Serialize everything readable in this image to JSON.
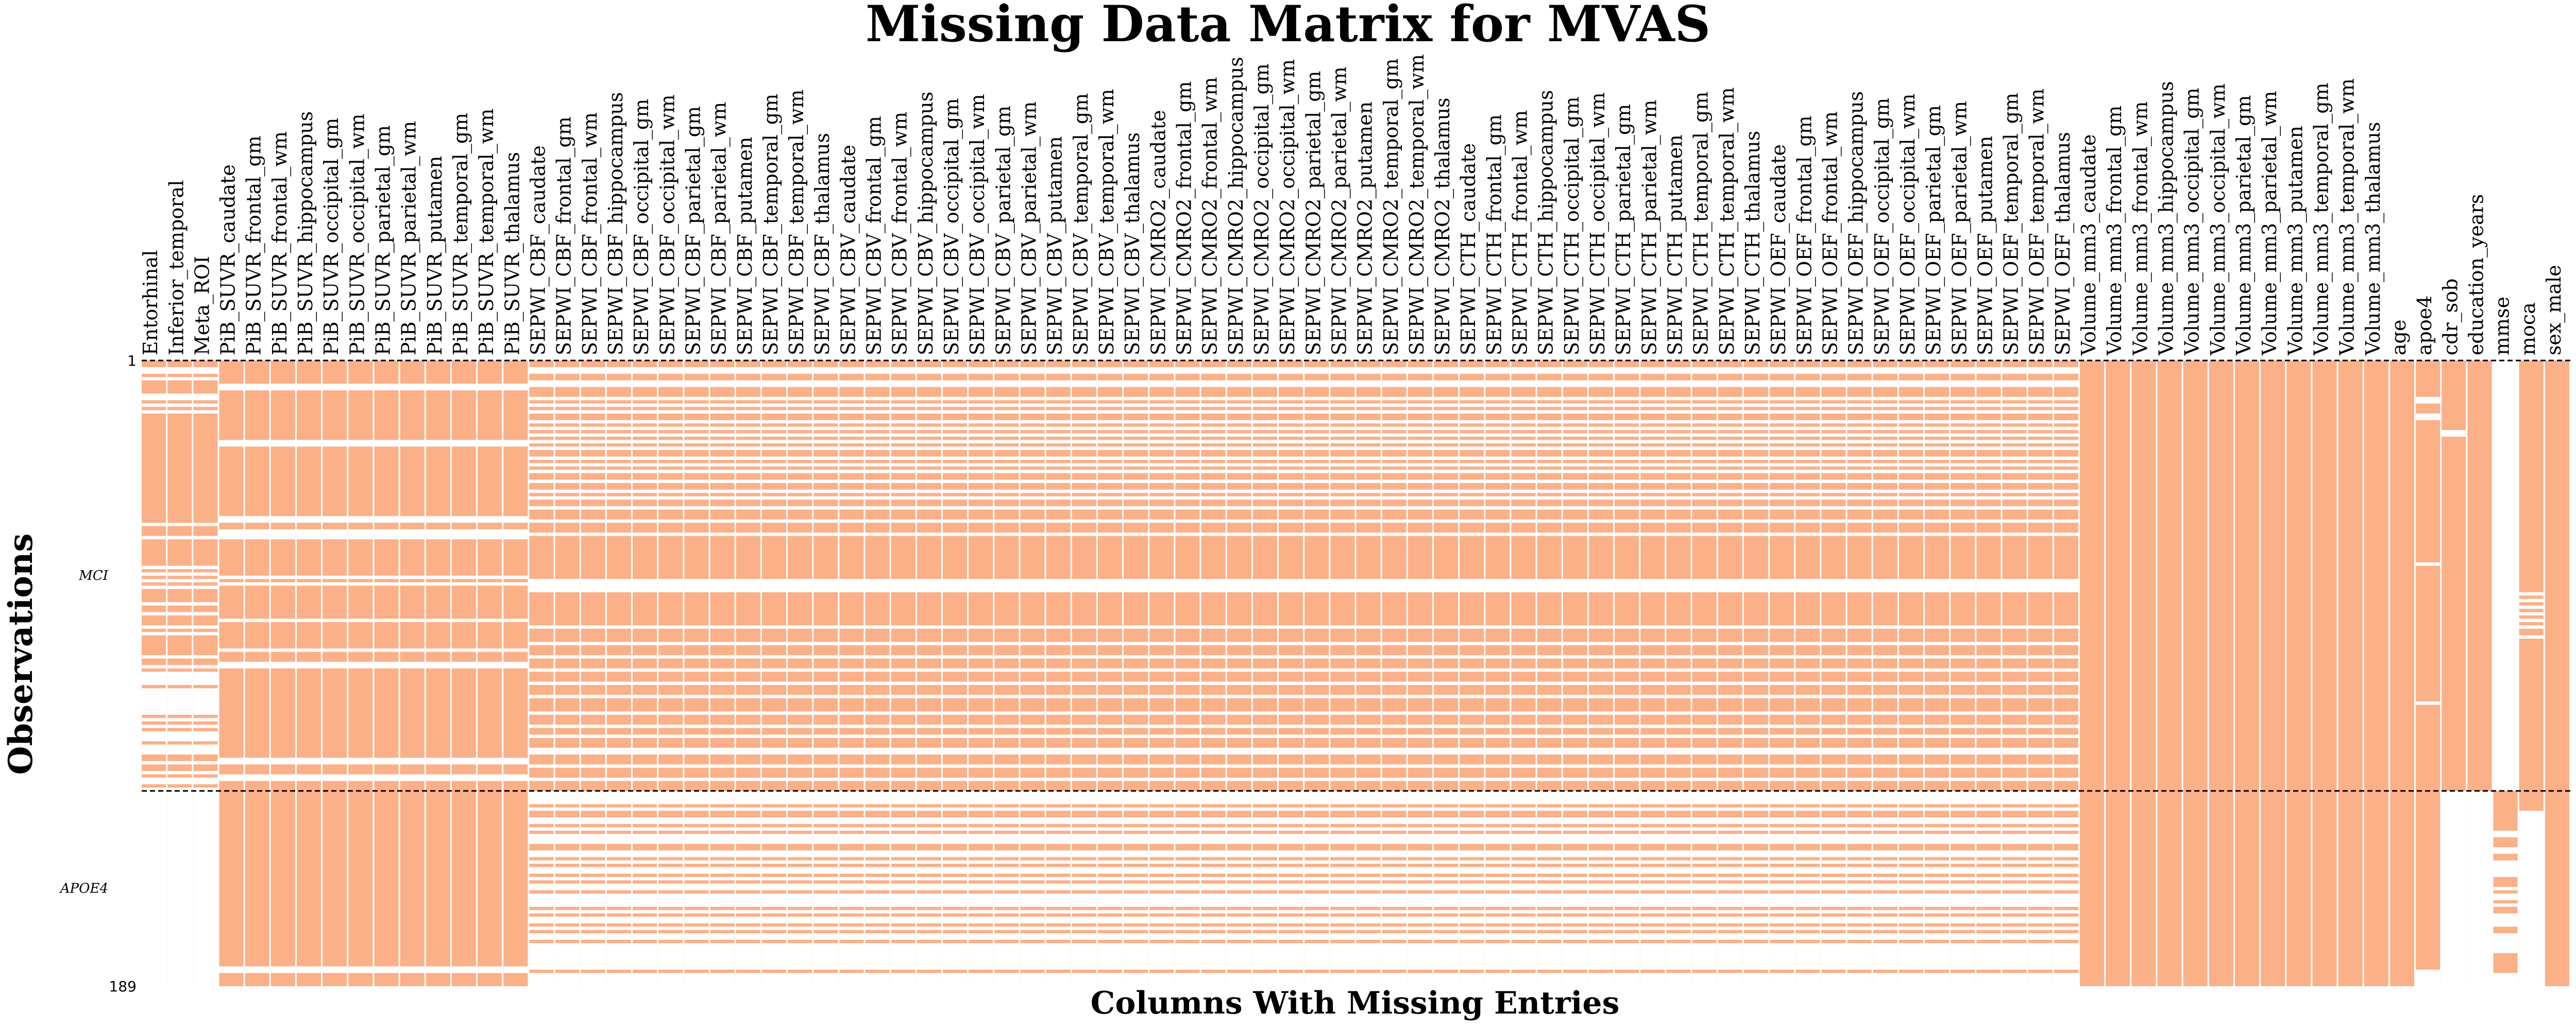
{
  "chart_data": {
    "type": "heatmap",
    "title": "Missing Data Matrix for MVAS",
    "xlabel": "Columns With Missing Entries",
    "ylabel": "Observations",
    "row_range": [
      1,
      189
    ],
    "row_tick_labels": [
      "1",
      "189"
    ],
    "group_labels": [
      "MCI",
      "APOE4"
    ],
    "group_row_ranges": [
      [
        1,
        130
      ],
      [
        131,
        189
      ]
    ],
    "colors": {
      "present": "#fcb088",
      "missing": "#ffffff",
      "divider": "#000000"
    },
    "columns": [
      "Entorhinal",
      "Inferior_temporal",
      "Meta_ROI",
      "PiB_SUVR_caudate",
      "PiB_SUVR_frontal_gm",
      "PiB_SUVR_frontal_wm",
      "PiB_SUVR_hippocampus",
      "PiB_SUVR_occipital_gm",
      "PiB_SUVR_occipital_wm",
      "PiB_SUVR_parietal_gm",
      "PiB_SUVR_parietal_wm",
      "PiB_SUVR_putamen",
      "PiB_SUVR_temporal_gm",
      "PiB_SUVR_temporal_wm",
      "PiB_SUVR_thalamus",
      "SEPWI_CBF_caudate",
      "SEPWI_CBF_frontal_gm",
      "SEPWI_CBF_frontal_wm",
      "SEPWI_CBF_hippocampus",
      "SEPWI_CBF_occipital_gm",
      "SEPWI_CBF_occipital_wm",
      "SEPWI_CBF_parietal_gm",
      "SEPWI_CBF_parietal_wm",
      "SEPWI_CBF_putamen",
      "SEPWI_CBF_temporal_gm",
      "SEPWI_CBF_temporal_wm",
      "SEPWI_CBF_thalamus",
      "SEPWI_CBV_caudate",
      "SEPWI_CBV_frontal_gm",
      "SEPWI_CBV_frontal_wm",
      "SEPWI_CBV_hippocampus",
      "SEPWI_CBV_occipital_gm",
      "SEPWI_CBV_occipital_wm",
      "SEPWI_CBV_parietal_gm",
      "SEPWI_CBV_parietal_wm",
      "SEPWI_CBV_putamen",
      "SEPWI_CBV_temporal_gm",
      "SEPWI_CBV_temporal_wm",
      "SEPWI_CBV_thalamus",
      "SEPWI_CMRO2_caudate",
      "SEPWI_CMRO2_frontal_gm",
      "SEPWI_CMRO2_frontal_wm",
      "SEPWI_CMRO2_hippocampus",
      "SEPWI_CMRO2_occipital_gm",
      "SEPWI_CMRO2_occipital_wm",
      "SEPWI_CMRO2_parietal_gm",
      "SEPWI_CMRO2_parietal_wm",
      "SEPWI_CMRO2_putamen",
      "SEPWI_CMRO2_temporal_gm",
      "SEPWI_CMRO2_temporal_wm",
      "SEPWI_CMRO2_thalamus",
      "SEPWI_CTH_caudate",
      "SEPWI_CTH_frontal_gm",
      "SEPWI_CTH_frontal_wm",
      "SEPWI_CTH_hippocampus",
      "SEPWI_CTH_occipital_gm",
      "SEPWI_CTH_occipital_wm",
      "SEPWI_CTH_parietal_gm",
      "SEPWI_CTH_parietal_wm",
      "SEPWI_CTH_putamen",
      "SEPWI_CTH_temporal_gm",
      "SEPWI_CTH_temporal_wm",
      "SEPWI_CTH_thalamus",
      "SEPWI_OEF_caudate",
      "SEPWI_OEF_frontal_gm",
      "SEPWI_OEF_frontal_wm",
      "SEPWI_OEF_hippocampus",
      "SEPWI_OEF_occipital_gm",
      "SEPWI_OEF_occipital_wm",
      "SEPWI_OEF_parietal_gm",
      "SEPWI_OEF_parietal_wm",
      "SEPWI_OEF_putamen",
      "SEPWI_OEF_temporal_gm",
      "SEPWI_OEF_temporal_wm",
      "SEPWI_OEF_thalamus",
      "Volume_mm3_caudate",
      "Volume_mm3_frontal_gm",
      "Volume_mm3_frontal_wm",
      "Volume_mm3_hippocampus",
      "Volume_mm3_occipital_gm",
      "Volume_mm3_occipital_wm",
      "Volume_mm3_parietal_gm",
      "Volume_mm3_parietal_wm",
      "Volume_mm3_putamen",
      "Volume_mm3_temporal_gm",
      "Volume_mm3_temporal_wm",
      "Volume_mm3_thalamus",
      "age",
      "apoe4",
      "cdr_sob",
      "education_years",
      "mmse",
      "moca",
      "sex_male"
    ],
    "missing_rows": {
      "amy": [
        3,
        4,
        6,
        11,
        12,
        14,
        16,
        50,
        54,
        63,
        65,
        67,
        69,
        74,
        77,
        81,
        83,
        90,
        93,
        95,
        96,
        97,
        98,
        100,
        101,
        102,
        103,
        104,
        105,
        106,
        107,
        109,
        111,
        113,
        114,
        115,
        117,
        118,
        119,
        122,
        125,
        127,
        128,
        130,
        131,
        132,
        133,
        134,
        135,
        136,
        137,
        138,
        139,
        140,
        141,
        142,
        143,
        144,
        145,
        146,
        147,
        148,
        149,
        150,
        151,
        152,
        153,
        154,
        155,
        156,
        157,
        158,
        159,
        160,
        161,
        162,
        163,
        164,
        165,
        166,
        167,
        168,
        169,
        170,
        171,
        172,
        173,
        174,
        175,
        176,
        177,
        178,
        179,
        180,
        181,
        182,
        183,
        184,
        185,
        186,
        187,
        188,
        189
      ],
      "pib": [
        8,
        9,
        25,
        26,
        48,
        49,
        52,
        53,
        54,
        66,
        68,
        79,
        88,
        92,
        93,
        121,
        122,
        126,
        127,
        184,
        185
      ],
      "sepwi": [
        3,
        4,
        7,
        8,
        12,
        14,
        16,
        19,
        21,
        23,
        25,
        27,
        30,
        32,
        34,
        37,
        40,
        42,
        45,
        49,
        53,
        67,
        68,
        69,
        70,
        81,
        86,
        90,
        94,
        98,
        102,
        107,
        111,
        114,
        118,
        119,
        123,
        127,
        131,
        132,
        133,
        134,
        136,
        139,
        140,
        142,
        144,
        145,
        146,
        149,
        150,
        152,
        154,
        155,
        157,
        159,
        160,
        162,
        163,
        164,
        165,
        167,
        169,
        170,
        172,
        174,
        175,
        177,
        178,
        179,
        180,
        181,
        182,
        183,
        184,
        186,
        187,
        188,
        189
      ],
      "apoe4": [
        12,
        13,
        17,
        18,
        62,
        104,
        185,
        186,
        187,
        188,
        189
      ],
      "cdr_sob": [
        22,
        23,
        131,
        132,
        133,
        134,
        135,
        136,
        137,
        138,
        139,
        140,
        141,
        142,
        143,
        144,
        145,
        146,
        147,
        148,
        149,
        150,
        151,
        152,
        153,
        154,
        155,
        156,
        157,
        158,
        159,
        160,
        161,
        162,
        163,
        164,
        165,
        166,
        167,
        168,
        169,
        170,
        171,
        172,
        173,
        174,
        175,
        176,
        177,
        178,
        179,
        180,
        181,
        182,
        183,
        184,
        185,
        186,
        187,
        188,
        189
      ],
      "education_years": [
        131,
        132,
        133,
        134,
        135,
        136,
        137,
        138,
        139,
        140,
        141,
        142,
        143,
        144,
        145,
        146,
        147,
        148,
        149,
        150,
        151,
        152,
        153,
        154,
        155,
        156,
        157,
        158,
        159,
        160,
        161,
        162,
        163,
        164,
        165,
        166,
        167,
        168,
        169,
        170,
        171,
        172,
        173,
        174,
        175,
        176,
        177,
        178,
        179,
        180,
        181,
        182,
        183,
        184,
        185,
        186,
        187,
        188,
        189
      ],
      "mmse": [
        1,
        2,
        3,
        4,
        5,
        6,
        7,
        8,
        9,
        10,
        11,
        12,
        13,
        14,
        15,
        16,
        17,
        18,
        19,
        20,
        21,
        22,
        23,
        24,
        25,
        26,
        27,
        28,
        29,
        30,
        31,
        32,
        33,
        34,
        35,
        36,
        37,
        38,
        39,
        40,
        41,
        42,
        43,
        44,
        45,
        46,
        47,
        48,
        49,
        50,
        51,
        52,
        53,
        54,
        55,
        56,
        57,
        58,
        59,
        60,
        61,
        62,
        63,
        64,
        65,
        66,
        67,
        68,
        69,
        70,
        71,
        72,
        73,
        74,
        75,
        76,
        77,
        78,
        79,
        80,
        81,
        82,
        83,
        84,
        85,
        86,
        87,
        88,
        89,
        90,
        91,
        92,
        93,
        94,
        95,
        96,
        97,
        98,
        99,
        100,
        101,
        102,
        103,
        104,
        105,
        106,
        107,
        108,
        109,
        110,
        111,
        112,
        113,
        114,
        115,
        116,
        117,
        118,
        119,
        120,
        121,
        122,
        123,
        124,
        125,
        126,
        127,
        128,
        129,
        130,
        143,
        144,
        148,
        149,
        152,
        153,
        154,
        155,
        156,
        160,
        162,
        163,
        165,
        168,
        169,
        170,
        171,
        174,
        175,
        176,
        177,
        178,
        179,
        186,
        187,
        188,
        189
      ],
      "moca": [
        137,
        138,
        139,
        140,
        141,
        142,
        143,
        144,
        145,
        146,
        147,
        148,
        149,
        150,
        151,
        152,
        153,
        154,
        155,
        156,
        157,
        158,
        159,
        160,
        161,
        162,
        163,
        164,
        165,
        166,
        167,
        168,
        169,
        170,
        171,
        172,
        173,
        174,
        175,
        176,
        177,
        178,
        179,
        180,
        181,
        182,
        183,
        184,
        185,
        186,
        187,
        188,
        189
      ],
      "moca_low_missing": [
        71,
        73,
        75,
        77,
        79,
        81,
        84
      ]
    },
    "column_groups": {
      "amy": [
        0,
        1,
        2
      ],
      "pib": [
        3,
        4,
        5,
        6,
        7,
        8,
        9,
        10,
        11,
        12,
        13,
        14
      ],
      "sepwi": [
        15,
        16,
        17,
        18,
        19,
        20,
        21,
        22,
        23,
        24,
        25,
        26,
        27,
        28,
        29,
        30,
        31,
        32,
        33,
        34,
        35,
        36,
        37,
        38,
        39,
        40,
        41,
        42,
        43,
        44,
        45,
        46,
        47,
        48,
        49,
        50,
        51,
        52,
        53,
        54,
        55,
        56,
        57,
        58,
        59,
        60,
        61,
        62,
        63,
        64,
        65,
        66,
        67,
        68,
        69,
        70,
        71,
        72,
        73,
        74
      ],
      "complete": [
        75,
        76,
        77,
        78,
        79,
        80,
        81,
        82,
        83,
        84,
        85,
        86,
        87,
        94
      ],
      "apoe4": [
        88
      ],
      "cdr_sob": [
        89
      ],
      "education_years": [
        90
      ],
      "mmse": [
        91
      ],
      "moca": [
        92
      ]
    }
  }
}
